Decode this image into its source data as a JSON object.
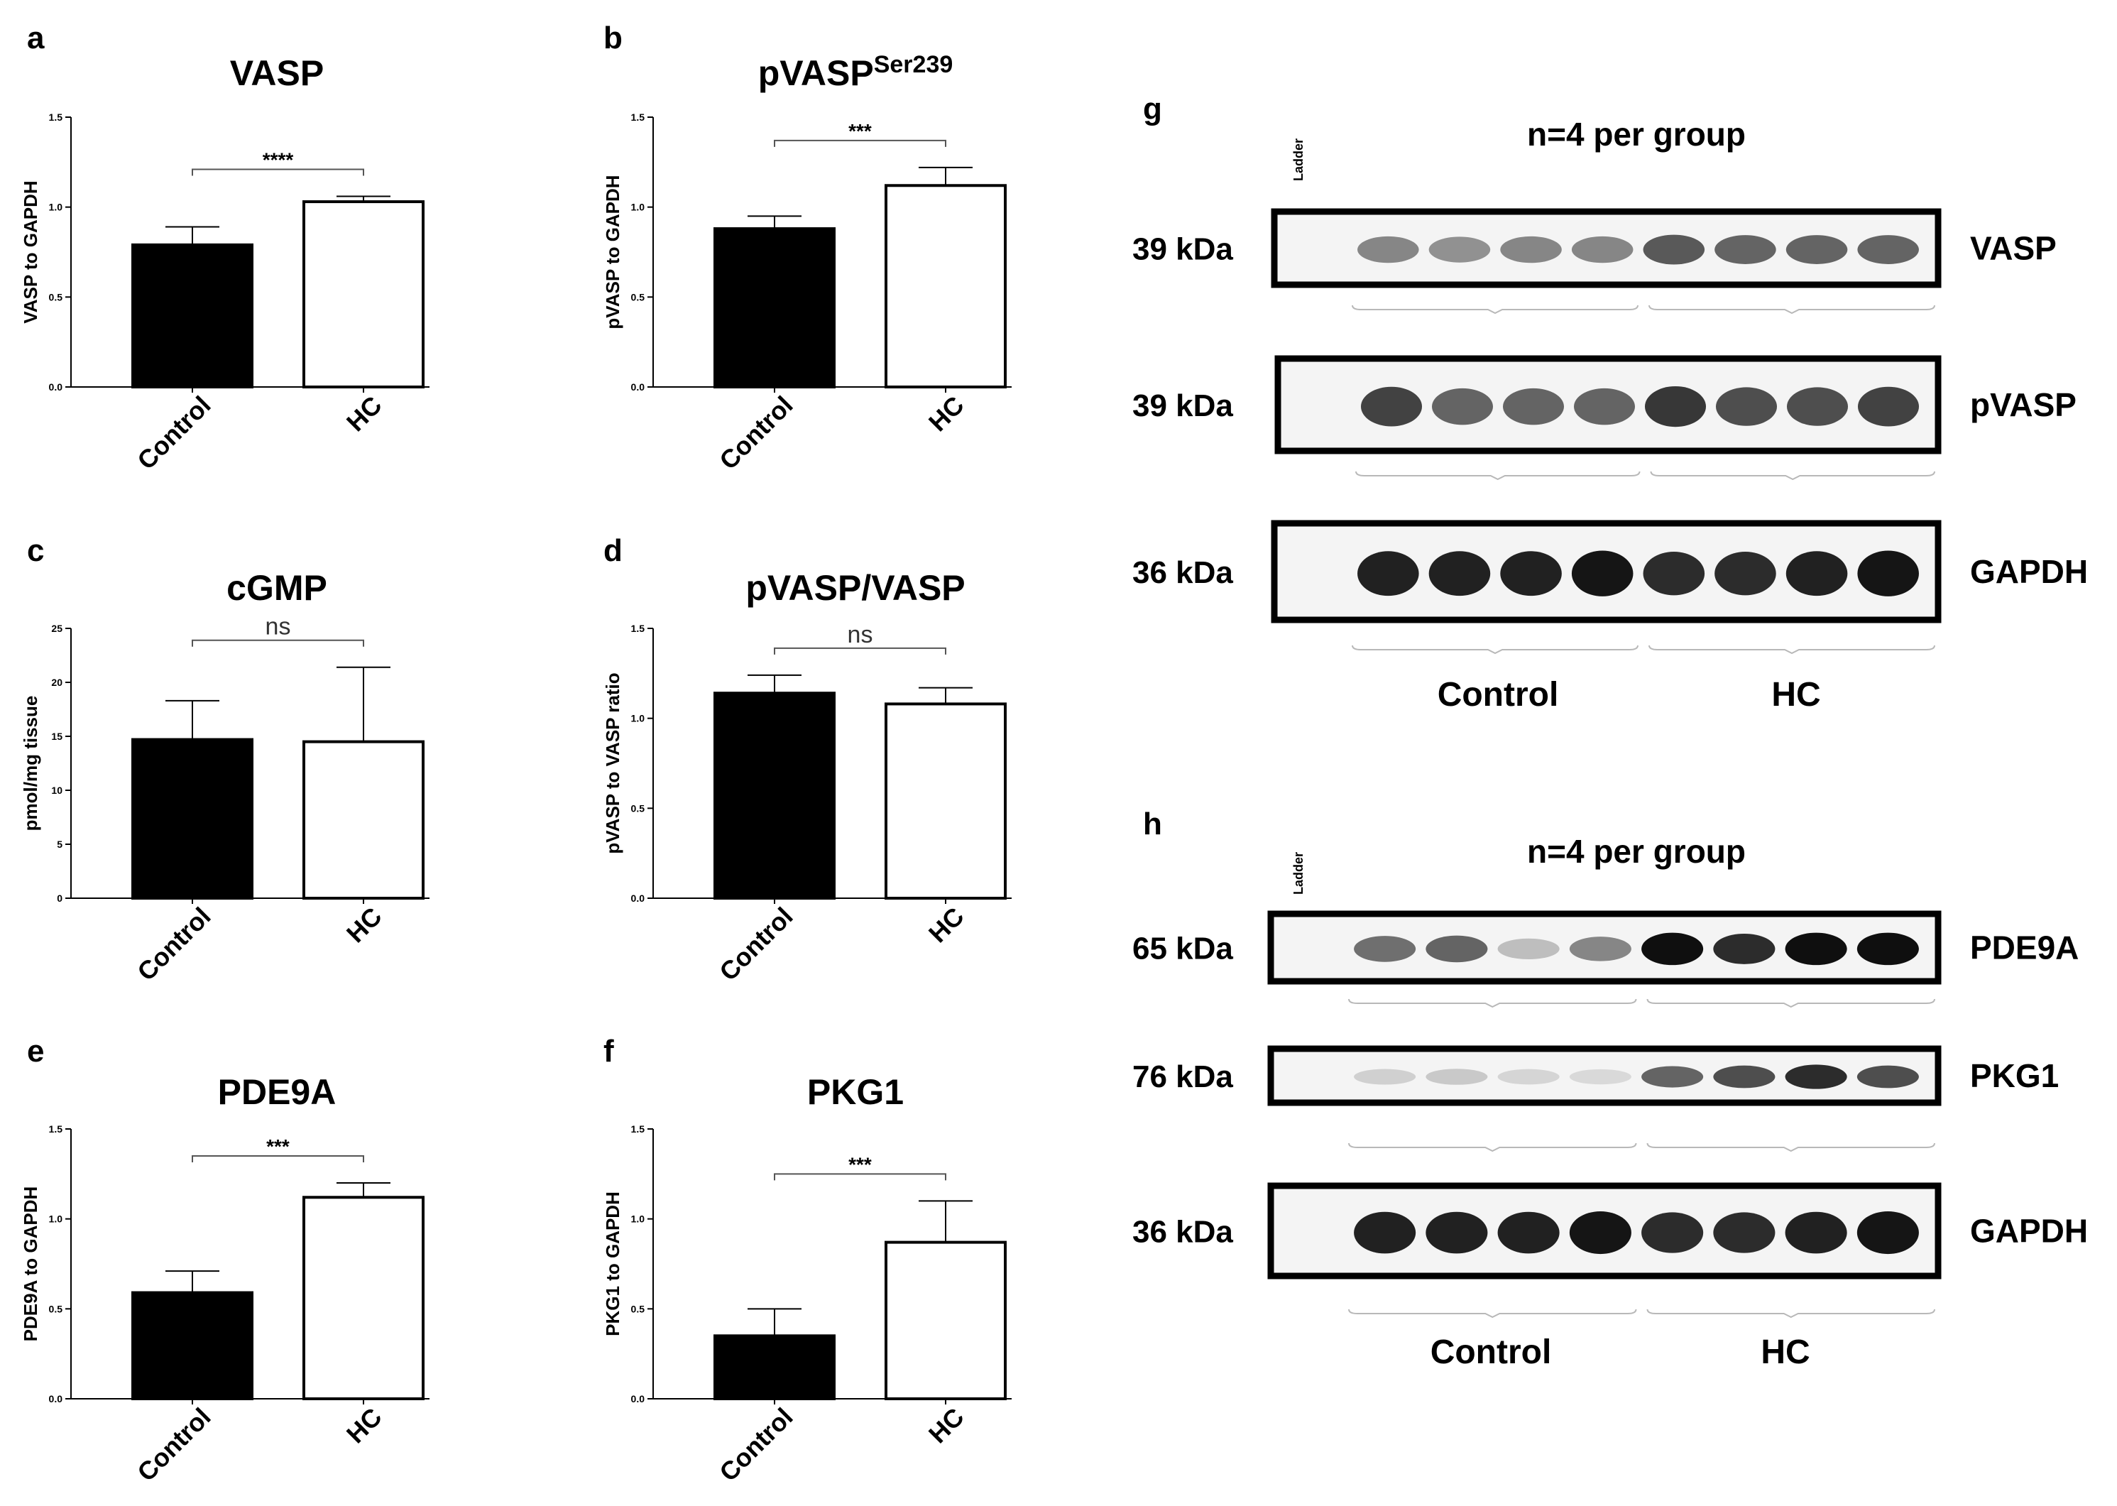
{
  "chart_data": [
    {
      "panel": "a",
      "type": "bar",
      "title": "VASP",
      "title_sup": "",
      "xlabel": "",
      "ylabel": "VASP to GAPDH",
      "categories": [
        "Control",
        "HC"
      ],
      "values": [
        0.79,
        1.03
      ],
      "errors": [
        0.1,
        0.03
      ],
      "bar_colors": [
        "#000000",
        "#ffffff"
      ],
      "ylim": [
        0,
        1.5
      ],
      "yticks": [
        "0.0",
        "0.5",
        "1.0",
        "1.5"
      ],
      "significance": "****"
    },
    {
      "panel": "b",
      "type": "bar",
      "title": "pVASP",
      "title_sup": "Ser239",
      "xlabel": "",
      "ylabel": "pVASP to GAPDH",
      "categories": [
        "Control",
        "HC"
      ],
      "values": [
        0.88,
        1.12
      ],
      "errors": [
        0.07,
        0.1
      ],
      "bar_colors": [
        "#000000",
        "#ffffff"
      ],
      "ylim": [
        0,
        1.5
      ],
      "yticks": [
        "0.0",
        "0.5",
        "1.0",
        "1.5"
      ],
      "significance": "***"
    },
    {
      "panel": "c",
      "type": "bar",
      "title": "cGMP",
      "title_sup": "",
      "xlabel": "",
      "ylabel": "pmol/mg tissue",
      "categories": [
        "Control",
        "HC"
      ],
      "values": [
        14.7,
        14.5
      ],
      "errors": [
        3.6,
        6.9
      ],
      "bar_colors": [
        "#000000",
        "#ffffff"
      ],
      "ylim": [
        0,
        25
      ],
      "yticks": [
        "0",
        "5",
        "10",
        "15",
        "20",
        "25"
      ],
      "significance": "ns"
    },
    {
      "panel": "d",
      "type": "bar",
      "title": "pVASP/VASP",
      "title_sup": "",
      "xlabel": "",
      "ylabel": "pVASP to VASP ratio",
      "categories": [
        "Control",
        "HC"
      ],
      "values": [
        1.14,
        1.08
      ],
      "errors": [
        0.1,
        0.09
      ],
      "bar_colors": [
        "#000000",
        "#ffffff"
      ],
      "ylim": [
        0,
        1.5
      ],
      "yticks": [
        "0.0",
        "0.5",
        "1.0",
        "1.5"
      ],
      "significance": "ns"
    },
    {
      "panel": "e",
      "type": "bar",
      "title": "PDE9A",
      "title_sup": "",
      "xlabel": "",
      "ylabel": "PDE9A to GAPDH",
      "categories": [
        "Control",
        "HC"
      ],
      "values": [
        0.59,
        1.12
      ],
      "errors": [
        0.12,
        0.08
      ],
      "bar_colors": [
        "#000000",
        "#ffffff"
      ],
      "ylim": [
        0,
        1.5
      ],
      "yticks": [
        "0.0",
        "0.5",
        "1.0",
        "1.5"
      ],
      "significance": "***"
    },
    {
      "panel": "f",
      "type": "bar",
      "title": "PKG1",
      "title_sup": "",
      "xlabel": "",
      "ylabel": "PKG1 to GAPDH",
      "categories": [
        "Control",
        "HC"
      ],
      "values": [
        0.35,
        0.87
      ],
      "errors": [
        0.15,
        0.23
      ],
      "bar_colors": [
        "#000000",
        "#ffffff"
      ],
      "ylim": [
        0,
        1.5
      ],
      "yticks": [
        "0.0",
        "0.5",
        "1.0",
        "1.5"
      ],
      "significance": "***"
    }
  ],
  "blots": [
    {
      "panel": "g",
      "header": "n=4 per group",
      "ladder_label": "Ladder",
      "groups": [
        "Control",
        "HC"
      ],
      "rows": [
        {
          "kda": "39 kDa",
          "protein": "VASP",
          "intensities": [
            0.45,
            0.4,
            0.45,
            0.45,
            0.65,
            0.6,
            0.6,
            0.6
          ]
        },
        {
          "kda": "39 kDa",
          "protein": "pVASP",
          "intensities": [
            0.75,
            0.6,
            0.6,
            0.6,
            0.8,
            0.7,
            0.7,
            0.75
          ]
        },
        {
          "kda": "36 kDa",
          "protein": "GAPDH",
          "intensities": [
            0.9,
            0.9,
            0.9,
            0.95,
            0.85,
            0.85,
            0.9,
            0.95
          ]
        }
      ]
    },
    {
      "panel": "h",
      "header": "n=4 per group",
      "ladder_label": "Ladder",
      "groups": [
        "Control",
        "HC"
      ],
      "rows": [
        {
          "kda": "65 kDa",
          "protein": "PDE9A",
          "intensities": [
            0.55,
            0.6,
            0.2,
            0.45,
            0.98,
            0.85,
            0.98,
            0.98
          ]
        },
        {
          "kda": "76 kDa",
          "protein": "PKG1",
          "intensities": [
            0.12,
            0.15,
            0.1,
            0.08,
            0.6,
            0.7,
            0.85,
            0.7
          ]
        },
        {
          "kda": "36 kDa",
          "protein": "GAPDH",
          "intensities": [
            0.9,
            0.9,
            0.9,
            0.95,
            0.85,
            0.85,
            0.9,
            0.95
          ]
        }
      ]
    }
  ]
}
